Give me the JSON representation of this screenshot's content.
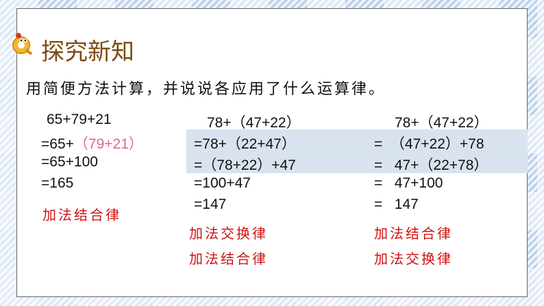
{
  "title": "探究新知",
  "instruction": "用简便方法计算，并说说各应用了什么运算律。",
  "col1": {
    "lines": [
      "65+79+21",
      "=65+",
      "=65+100",
      "=165"
    ],
    "highlight": "（79+21）",
    "law": "加法结合律"
  },
  "col2": {
    "lines": [
      "78+（47+22）",
      "=78+（22+47）",
      "=（78+22）+47",
      "=100+47",
      "=147"
    ],
    "laws": [
      "加法交换律",
      "加法结合律"
    ]
  },
  "col3": {
    "lines": [
      "78+（47+22）",
      "=  （47+22）+78",
      "=   47+（22+78）",
      "=   47+100",
      "=   147"
    ],
    "laws": [
      "加法结合律",
      "加法交换律"
    ]
  },
  "colors": {
    "title": "#7a4a10",
    "law": "#d01010",
    "highlight": "#e0609a",
    "band": "#d9e3f0"
  }
}
